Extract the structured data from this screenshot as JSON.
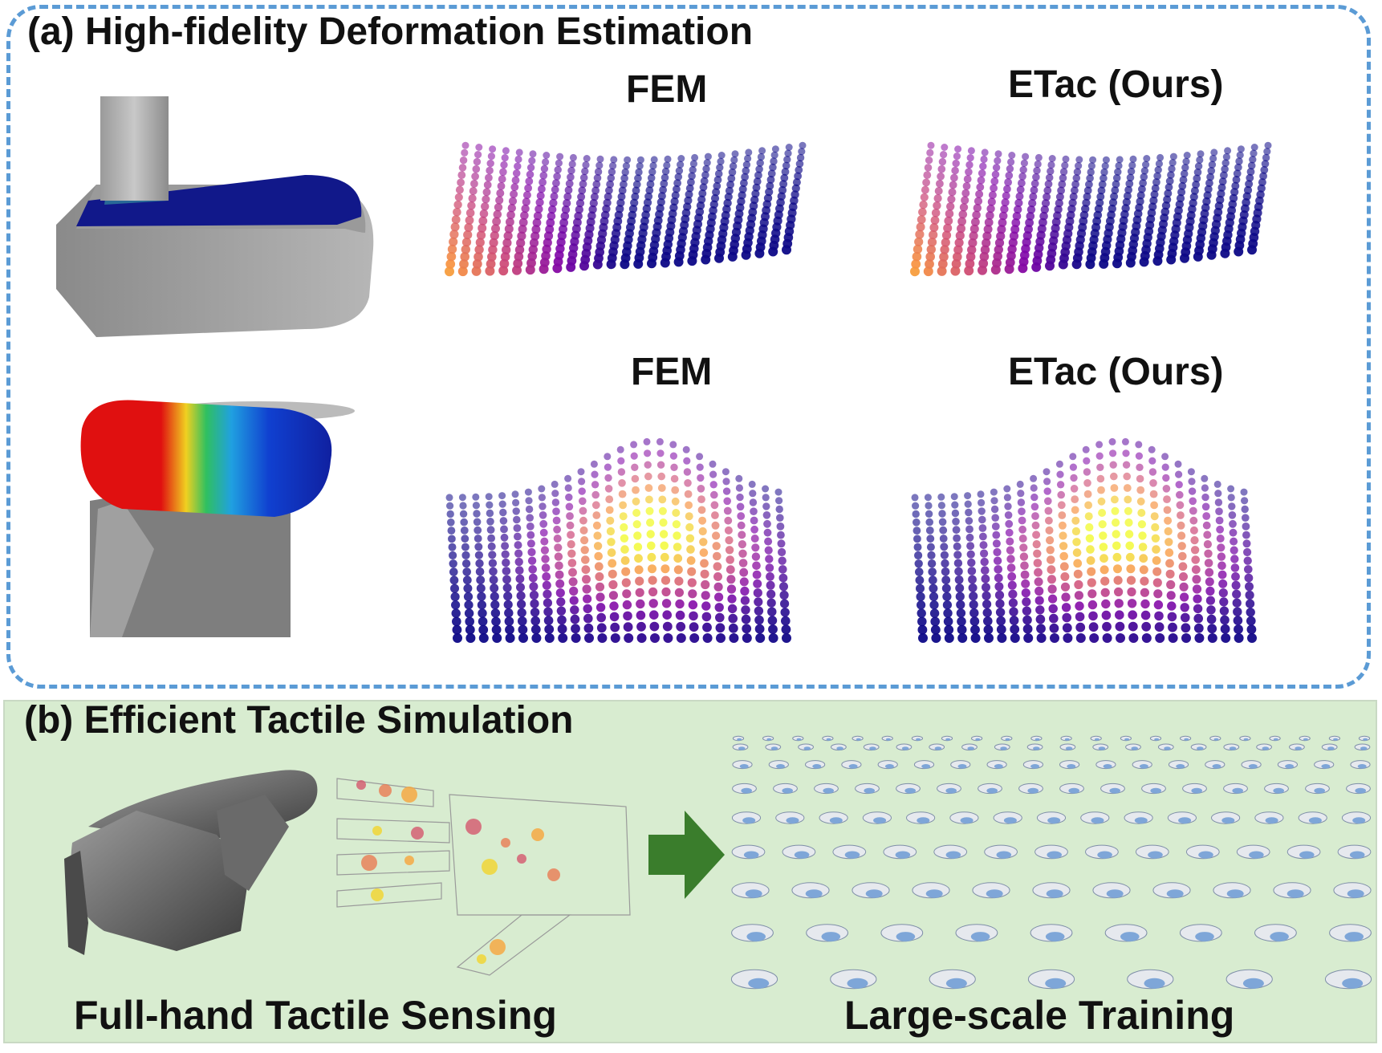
{
  "panel_a": {
    "title": "(a) High-fidelity Deformation Estimation",
    "row1": {
      "left_label": "FEM",
      "right_label": "ETac (Ours)"
    },
    "row2": {
      "left_label": "FEM",
      "right_label": "ETac (Ours)"
    },
    "border_color": "#5b9bd5"
  },
  "panel_b": {
    "title": "(b) Efficient Tactile Simulation",
    "caption_left": "Full-hand Tactile Sensing",
    "caption_right": "Large-scale Training",
    "background": "#d8ecd0",
    "arrow_color": "#3a7d2c"
  }
}
